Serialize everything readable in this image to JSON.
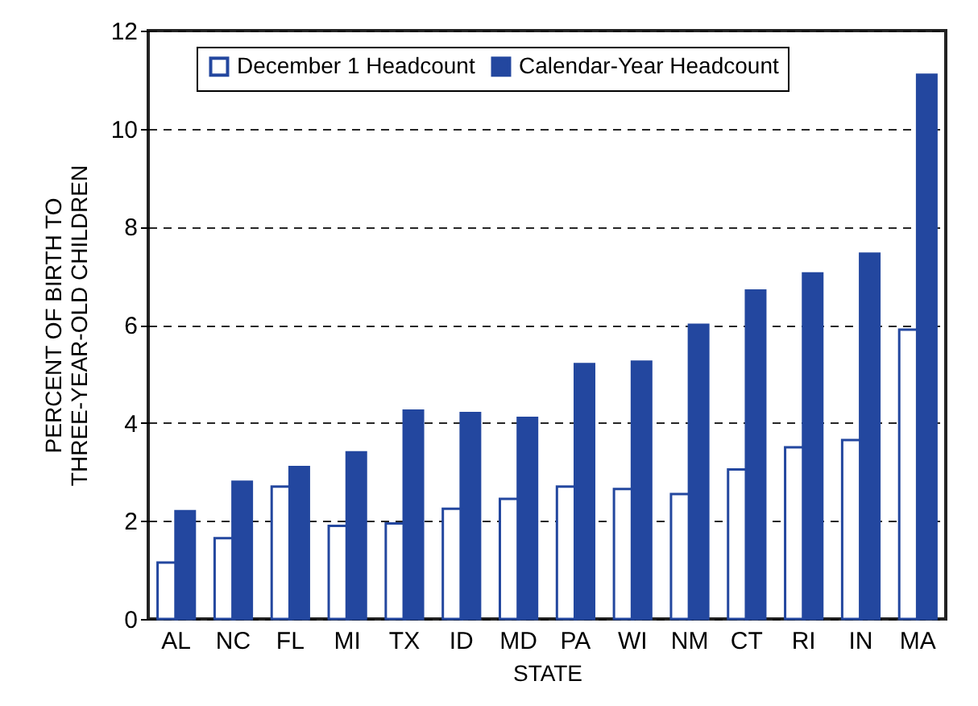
{
  "chart_data": {
    "type": "bar",
    "xlabel": "STATE",
    "ylabel": "PERCENT OF BIRTH TO THREE-YEAR-OLD CHILDREN",
    "categories": [
      "AL",
      "NC",
      "FL",
      "MI",
      "TX",
      "ID",
      "MD",
      "PA",
      "WI",
      "NM",
      "CT",
      "RI",
      "IN",
      "MA"
    ],
    "series": [
      {
        "name": "December 1 Headcount",
        "color": "#ffffff",
        "values": [
          1.15,
          1.65,
          2.7,
          1.9,
          1.95,
          2.25,
          2.45,
          2.7,
          2.65,
          2.55,
          3.05,
          3.5,
          3.65,
          5.9
        ]
      },
      {
        "name": "Calendar-Year Headcount",
        "color": "#23479f",
        "values": [
          2.2,
          2.8,
          3.1,
          3.4,
          4.25,
          4.2,
          4.1,
          5.2,
          5.25,
          6.0,
          6.7,
          7.05,
          7.45,
          11.1
        ]
      }
    ],
    "ylim": [
      0,
      12
    ],
    "yticks": [
      0,
      2,
      4,
      6,
      8,
      10,
      12
    ],
    "grid": "y",
    "legend": "top"
  }
}
